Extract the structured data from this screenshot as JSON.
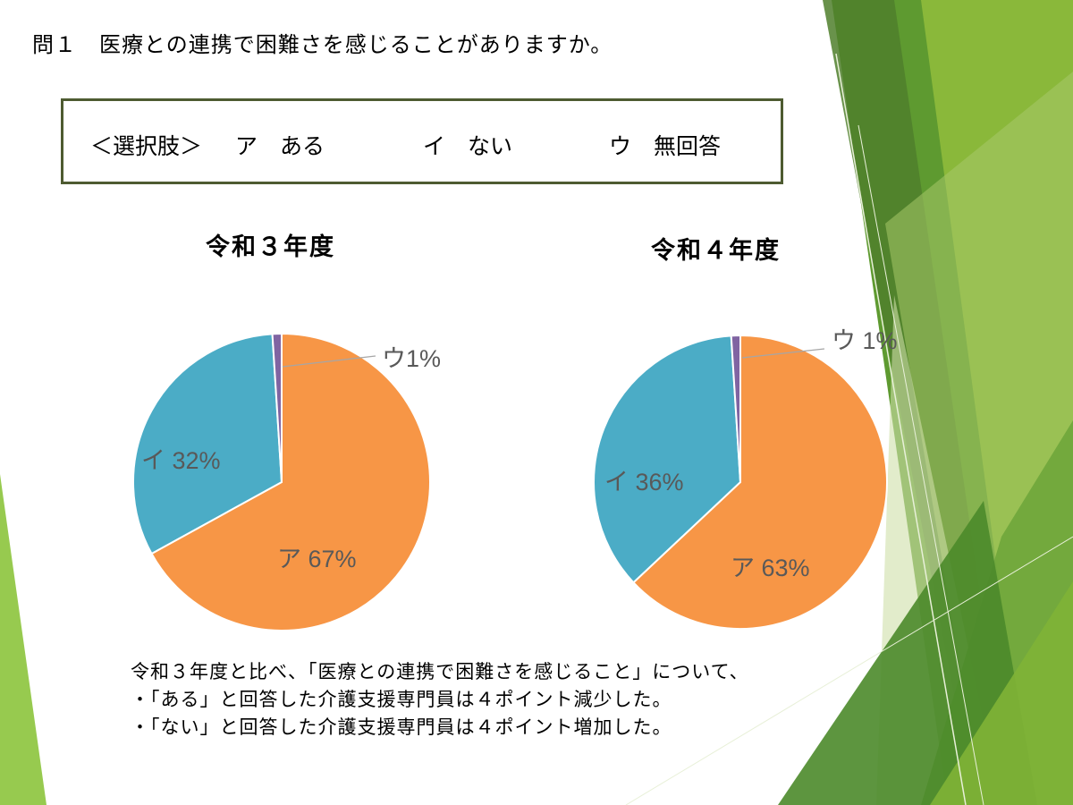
{
  "question": "問１　医療との連携で困難さを感じることがありますか。",
  "choices": {
    "label": "＜選択肢＞",
    "a": "ア　ある",
    "i": "イ　ない",
    "u": "ウ　無回答"
  },
  "colors": {
    "ア": "#f79646",
    "イ": "#4bacc6",
    "ウ": "#8064a2",
    "box_border": "#4e5b31",
    "label_text": "#595959"
  },
  "chart_data": [
    {
      "type": "pie",
      "title": "令和３年度",
      "slices": [
        {
          "category": "ア",
          "value": 67,
          "label": "ア 67%"
        },
        {
          "category": "イ",
          "value": 32,
          "label": "イ 32%"
        },
        {
          "category": "ウ",
          "value": 1,
          "label": "ウ1%"
        }
      ]
    },
    {
      "type": "pie",
      "title": "令和４年度",
      "slices": [
        {
          "category": "ア",
          "value": 63,
          "label": "ア 63%"
        },
        {
          "category": "イ",
          "value": 36,
          "label": "イ 36%"
        },
        {
          "category": "ウ",
          "value": 1,
          "label": "ウ 1%"
        }
      ]
    }
  ],
  "summary": [
    "令和３年度と比べ、「医療との連携で困難さを感じること」について、",
    "・「ある」と回答した介護支援専門員は４ポイント減少した。",
    "・「ない」と回答した介護支援専門員は４ポイント増加した。"
  ]
}
